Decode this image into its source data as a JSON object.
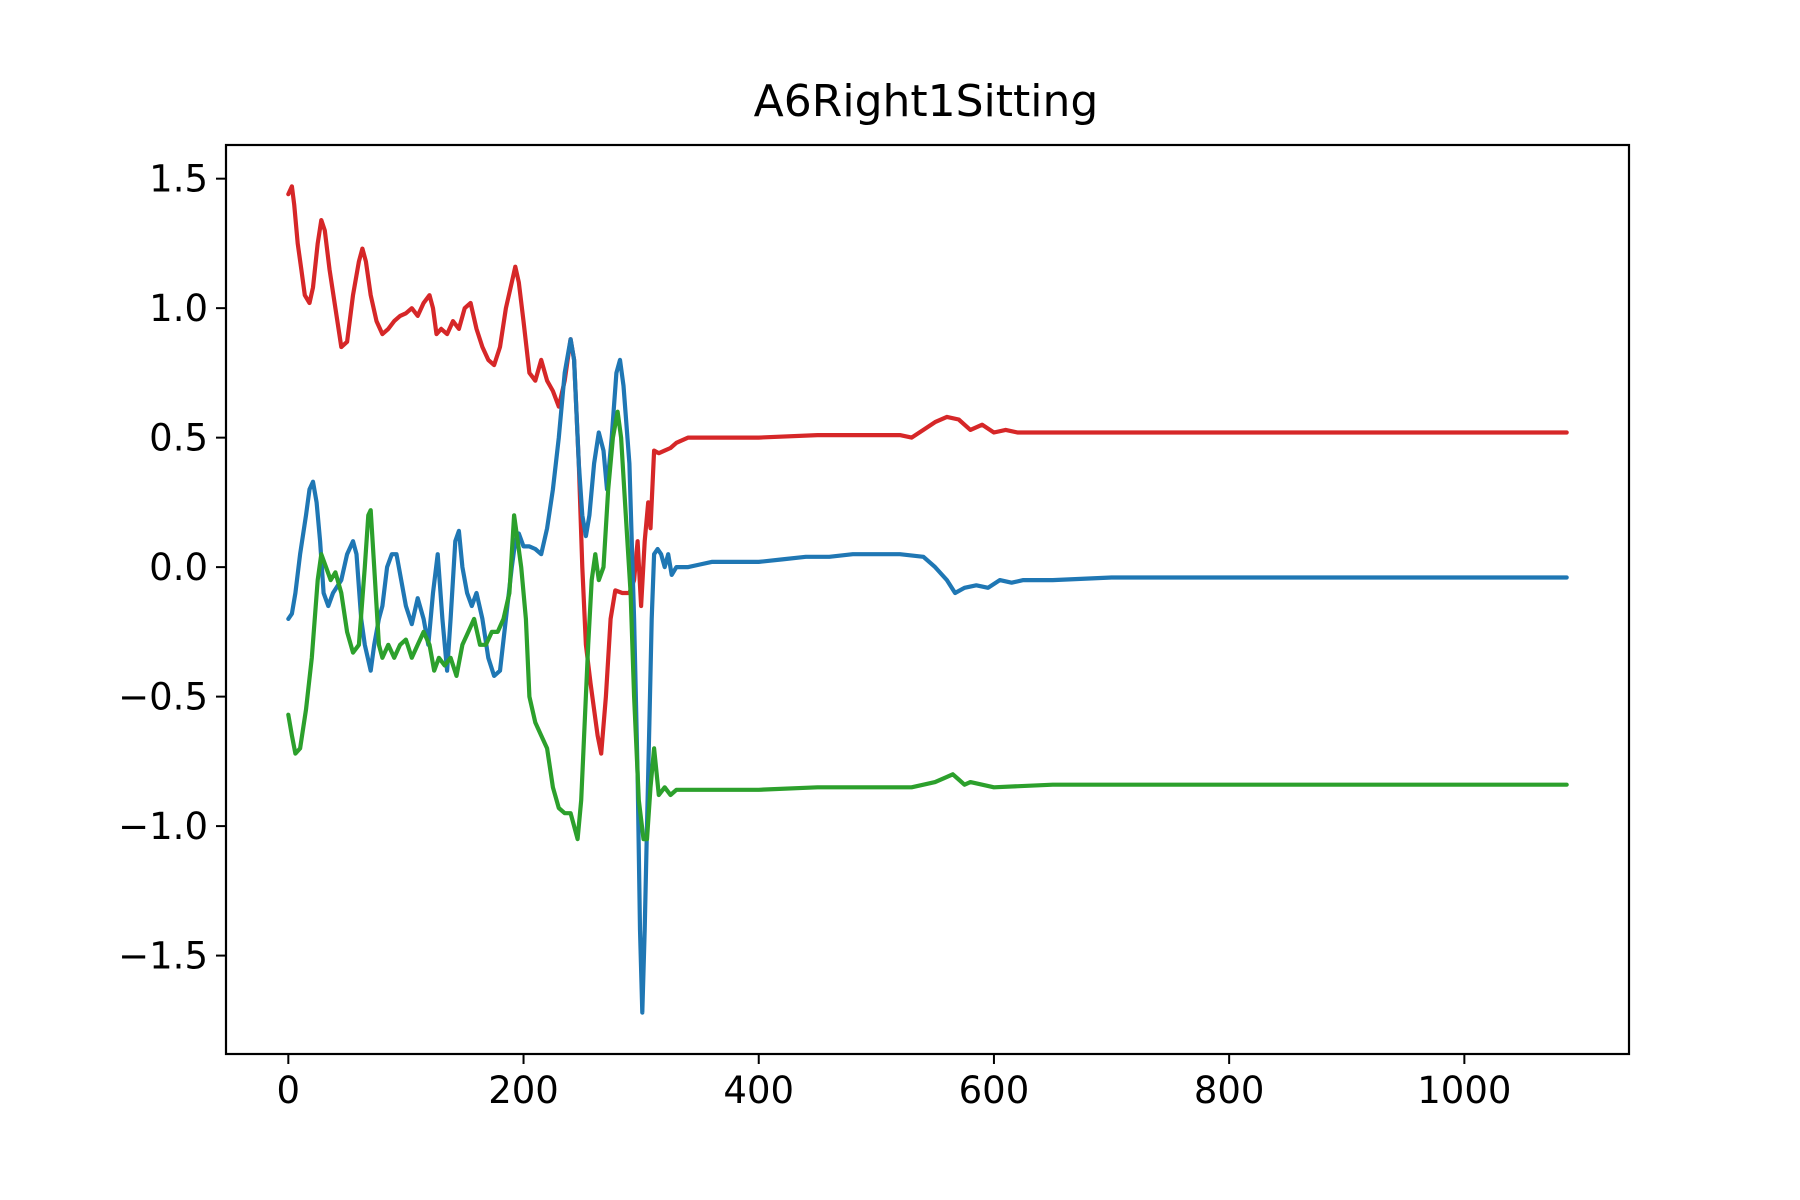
{
  "chart_data": {
    "type": "line",
    "title": "A6Right1Sitting",
    "xlabel": "",
    "ylabel": "",
    "xlim": [
      -53,
      1140
    ],
    "ylim": [
      -1.88,
      1.63
    ],
    "xticks": [
      0,
      200,
      400,
      600,
      800,
      1000
    ],
    "yticks": [
      -1.5,
      -1.0,
      -0.5,
      0.0,
      0.5,
      1.0,
      1.5
    ],
    "xtick_labels": [
      "0",
      "200",
      "400",
      "600",
      "800",
      "1000"
    ],
    "ytick_labels": [
      "−1.5",
      "−1.0",
      "−0.5",
      "0.0",
      "0.5",
      "1.0",
      "1.5"
    ],
    "grid": false,
    "legend": "none",
    "series": [
      {
        "color": "#d62728",
        "points": [
          [
            0,
            1.44
          ],
          [
            3,
            1.47
          ],
          [
            5,
            1.4
          ],
          [
            8,
            1.25
          ],
          [
            11,
            1.15
          ],
          [
            14,
            1.05
          ],
          [
            18,
            1.02
          ],
          [
            21,
            1.08
          ],
          [
            25,
            1.25
          ],
          [
            28,
            1.34
          ],
          [
            31,
            1.3
          ],
          [
            35,
            1.15
          ],
          [
            40,
            1.0
          ],
          [
            45,
            0.85
          ],
          [
            50,
            0.87
          ],
          [
            55,
            1.05
          ],
          [
            60,
            1.18
          ],
          [
            63,
            1.23
          ],
          [
            66,
            1.18
          ],
          [
            70,
            1.05
          ],
          [
            75,
            0.95
          ],
          [
            80,
            0.9
          ],
          [
            85,
            0.92
          ],
          [
            90,
            0.95
          ],
          [
            95,
            0.97
          ],
          [
            100,
            0.98
          ],
          [
            105,
            1.0
          ],
          [
            110,
            0.97
          ],
          [
            115,
            1.02
          ],
          [
            120,
            1.05
          ],
          [
            123,
            1.0
          ],
          [
            126,
            0.9
          ],
          [
            130,
            0.92
          ],
          [
            135,
            0.9
          ],
          [
            140,
            0.95
          ],
          [
            145,
            0.92
          ],
          [
            150,
            1.0
          ],
          [
            155,
            1.02
          ],
          [
            160,
            0.92
          ],
          [
            165,
            0.85
          ],
          [
            170,
            0.8
          ],
          [
            175,
            0.78
          ],
          [
            180,
            0.85
          ],
          [
            185,
            1.0
          ],
          [
            190,
            1.1
          ],
          [
            193,
            1.16
          ],
          [
            196,
            1.1
          ],
          [
            200,
            0.95
          ],
          [
            205,
            0.75
          ],
          [
            210,
            0.72
          ],
          [
            215,
            0.8
          ],
          [
            220,
            0.72
          ],
          [
            225,
            0.68
          ],
          [
            230,
            0.62
          ],
          [
            235,
            0.72
          ],
          [
            240,
            0.88
          ],
          [
            243,
            0.8
          ],
          [
            247,
            0.4
          ],
          [
            250,
            0.0
          ],
          [
            253,
            -0.3
          ],
          [
            257,
            -0.45
          ],
          [
            260,
            -0.55
          ],
          [
            263,
            -0.65
          ],
          [
            266,
            -0.72
          ],
          [
            270,
            -0.5
          ],
          [
            274,
            -0.2
          ],
          [
            278,
            -0.09
          ],
          [
            284,
            -0.1
          ],
          [
            290,
            -0.1
          ],
          [
            294,
            -0.05
          ],
          [
            297,
            0.1
          ],
          [
            300,
            -0.15
          ],
          [
            303,
            0.1
          ],
          [
            306,
            0.25
          ],
          [
            308,
            0.15
          ],
          [
            311,
            0.45
          ],
          [
            315,
            0.44
          ],
          [
            320,
            0.45
          ],
          [
            325,
            0.46
          ],
          [
            330,
            0.48
          ],
          [
            340,
            0.5
          ],
          [
            350,
            0.5
          ],
          [
            400,
            0.5
          ],
          [
            450,
            0.51
          ],
          [
            500,
            0.51
          ],
          [
            520,
            0.51
          ],
          [
            530,
            0.5
          ],
          [
            540,
            0.53
          ],
          [
            550,
            0.56
          ],
          [
            560,
            0.58
          ],
          [
            570,
            0.57
          ],
          [
            575,
            0.55
          ],
          [
            580,
            0.53
          ],
          [
            590,
            0.55
          ],
          [
            600,
            0.52
          ],
          [
            610,
            0.53
          ],
          [
            620,
            0.52
          ],
          [
            650,
            0.52
          ],
          [
            700,
            0.52
          ],
          [
            800,
            0.52
          ],
          [
            900,
            0.52
          ],
          [
            1000,
            0.52
          ],
          [
            1050,
            0.52
          ],
          [
            1087,
            0.52
          ]
        ]
      },
      {
        "color": "#1f77b4",
        "points": [
          [
            0,
            -0.2
          ],
          [
            3,
            -0.18
          ],
          [
            6,
            -0.1
          ],
          [
            10,
            0.05
          ],
          [
            15,
            0.2
          ],
          [
            18,
            0.3
          ],
          [
            21,
            0.33
          ],
          [
            24,
            0.25
          ],
          [
            27,
            0.1
          ],
          [
            30,
            -0.1
          ],
          [
            34,
            -0.15
          ],
          [
            38,
            -0.1
          ],
          [
            45,
            -0.05
          ],
          [
            50,
            0.05
          ],
          [
            55,
            0.1
          ],
          [
            58,
            0.05
          ],
          [
            62,
            -0.2
          ],
          [
            65,
            -0.3
          ],
          [
            70,
            -0.4
          ],
          [
            73,
            -0.3
          ],
          [
            77,
            -0.2
          ],
          [
            80,
            -0.15
          ],
          [
            84,
            0.0
          ],
          [
            88,
            0.05
          ],
          [
            92,
            0.05
          ],
          [
            96,
            -0.05
          ],
          [
            100,
            -0.15
          ],
          [
            105,
            -0.22
          ],
          [
            110,
            -0.12
          ],
          [
            115,
            -0.2
          ],
          [
            119,
            -0.3
          ],
          [
            123,
            -0.1
          ],
          [
            127,
            0.05
          ],
          [
            131,
            -0.2
          ],
          [
            135,
            -0.4
          ],
          [
            138,
            -0.2
          ],
          [
            142,
            0.1
          ],
          [
            145,
            0.14
          ],
          [
            148,
            0.0
          ],
          [
            152,
            -0.1
          ],
          [
            156,
            -0.15
          ],
          [
            160,
            -0.1
          ],
          [
            165,
            -0.2
          ],
          [
            170,
            -0.35
          ],
          [
            175,
            -0.42
          ],
          [
            180,
            -0.4
          ],
          [
            185,
            -0.2
          ],
          [
            190,
            0.0
          ],
          [
            193,
            0.1
          ],
          [
            196,
            0.13
          ],
          [
            200,
            0.08
          ],
          [
            205,
            0.08
          ],
          [
            210,
            0.07
          ],
          [
            215,
            0.05
          ],
          [
            220,
            0.15
          ],
          [
            225,
            0.3
          ],
          [
            230,
            0.5
          ],
          [
            235,
            0.75
          ],
          [
            240,
            0.88
          ],
          [
            243,
            0.8
          ],
          [
            247,
            0.4
          ],
          [
            250,
            0.2
          ],
          [
            253,
            0.12
          ],
          [
            256,
            0.2
          ],
          [
            260,
            0.4
          ],
          [
            264,
            0.52
          ],
          [
            268,
            0.45
          ],
          [
            271,
            0.3
          ],
          [
            275,
            0.5
          ],
          [
            279,
            0.75
          ],
          [
            282,
            0.8
          ],
          [
            285,
            0.7
          ],
          [
            290,
            0.4
          ],
          [
            294,
            -0.2
          ],
          [
            297,
            -0.8
          ],
          [
            299,
            -1.4
          ],
          [
            301,
            -1.72
          ],
          [
            303,
            -1.4
          ],
          [
            305,
            -1.0
          ],
          [
            307,
            -0.6
          ],
          [
            309,
            -0.2
          ],
          [
            311,
            0.05
          ],
          [
            314,
            0.07
          ],
          [
            317,
            0.05
          ],
          [
            320,
            0.0
          ],
          [
            323,
            0.05
          ],
          [
            326,
            -0.03
          ],
          [
            330,
            0.0
          ],
          [
            340,
            0.0
          ],
          [
            350,
            0.01
          ],
          [
            360,
            0.02
          ],
          [
            400,
            0.02
          ],
          [
            420,
            0.03
          ],
          [
            440,
            0.04
          ],
          [
            460,
            0.04
          ],
          [
            480,
            0.05
          ],
          [
            500,
            0.05
          ],
          [
            520,
            0.05
          ],
          [
            540,
            0.04
          ],
          [
            550,
            0.0
          ],
          [
            560,
            -0.05
          ],
          [
            567,
            -0.1
          ],
          [
            575,
            -0.08
          ],
          [
            585,
            -0.07
          ],
          [
            595,
            -0.08
          ],
          [
            605,
            -0.05
          ],
          [
            615,
            -0.06
          ],
          [
            625,
            -0.05
          ],
          [
            650,
            -0.05
          ],
          [
            700,
            -0.04
          ],
          [
            800,
            -0.04
          ],
          [
            900,
            -0.04
          ],
          [
            1000,
            -0.04
          ],
          [
            1050,
            -0.04
          ],
          [
            1087,
            -0.04
          ]
        ]
      },
      {
        "color": "#2ca02c",
        "points": [
          [
            0,
            -0.57
          ],
          [
            3,
            -0.65
          ],
          [
            6,
            -0.72
          ],
          [
            10,
            -0.7
          ],
          [
            15,
            -0.55
          ],
          [
            20,
            -0.35
          ],
          [
            25,
            -0.05
          ],
          [
            28,
            0.05
          ],
          [
            32,
            0.0
          ],
          [
            36,
            -0.05
          ],
          [
            40,
            -0.02
          ],
          [
            45,
            -0.1
          ],
          [
            50,
            -0.25
          ],
          [
            55,
            -0.33
          ],
          [
            60,
            -0.3
          ],
          [
            65,
            0.0
          ],
          [
            68,
            0.2
          ],
          [
            70,
            0.22
          ],
          [
            73,
            0.0
          ],
          [
            77,
            -0.3
          ],
          [
            80,
            -0.35
          ],
          [
            85,
            -0.3
          ],
          [
            90,
            -0.35
          ],
          [
            95,
            -0.3
          ],
          [
            100,
            -0.28
          ],
          [
            105,
            -0.35
          ],
          [
            110,
            -0.3
          ],
          [
            115,
            -0.25
          ],
          [
            120,
            -0.3
          ],
          [
            124,
            -0.4
          ],
          [
            128,
            -0.35
          ],
          [
            133,
            -0.38
          ],
          [
            138,
            -0.35
          ],
          [
            143,
            -0.42
          ],
          [
            148,
            -0.3
          ],
          [
            153,
            -0.25
          ],
          [
            158,
            -0.2
          ],
          [
            163,
            -0.3
          ],
          [
            168,
            -0.3
          ],
          [
            173,
            -0.25
          ],
          [
            178,
            -0.25
          ],
          [
            183,
            -0.2
          ],
          [
            188,
            -0.1
          ],
          [
            192,
            0.2
          ],
          [
            195,
            0.1
          ],
          [
            198,
            0.0
          ],
          [
            202,
            -0.2
          ],
          [
            205,
            -0.5
          ],
          [
            210,
            -0.6
          ],
          [
            215,
            -0.65
          ],
          [
            220,
            -0.7
          ],
          [
            225,
            -0.85
          ],
          [
            230,
            -0.93
          ],
          [
            235,
            -0.95
          ],
          [
            240,
            -0.95
          ],
          [
            243,
            -1.0
          ],
          [
            246,
            -1.05
          ],
          [
            249,
            -0.9
          ],
          [
            252,
            -0.6
          ],
          [
            255,
            -0.3
          ],
          [
            258,
            -0.05
          ],
          [
            261,
            0.05
          ],
          [
            264,
            -0.05
          ],
          [
            268,
            0.0
          ],
          [
            272,
            0.3
          ],
          [
            276,
            0.5
          ],
          [
            280,
            0.6
          ],
          [
            283,
            0.5
          ],
          [
            287,
            0.2
          ],
          [
            291,
            -0.1
          ],
          [
            294,
            -0.5
          ],
          [
            298,
            -0.9
          ],
          [
            302,
            -1.05
          ],
          [
            305,
            -1.05
          ],
          [
            308,
            -0.85
          ],
          [
            311,
            -0.7
          ],
          [
            315,
            -0.88
          ],
          [
            320,
            -0.85
          ],
          [
            325,
            -0.88
          ],
          [
            330,
            -0.86
          ],
          [
            340,
            -0.86
          ],
          [
            360,
            -0.86
          ],
          [
            400,
            -0.86
          ],
          [
            450,
            -0.85
          ],
          [
            500,
            -0.85
          ],
          [
            530,
            -0.85
          ],
          [
            540,
            -0.84
          ],
          [
            550,
            -0.83
          ],
          [
            560,
            -0.81
          ],
          [
            565,
            -0.8
          ],
          [
            570,
            -0.82
          ],
          [
            575,
            -0.84
          ],
          [
            580,
            -0.83
          ],
          [
            590,
            -0.84
          ],
          [
            600,
            -0.85
          ],
          [
            650,
            -0.84
          ],
          [
            700,
            -0.84
          ],
          [
            800,
            -0.84
          ],
          [
            900,
            -0.84
          ],
          [
            1000,
            -0.84
          ],
          [
            1050,
            -0.84
          ],
          [
            1087,
            -0.84
          ]
        ]
      }
    ]
  }
}
